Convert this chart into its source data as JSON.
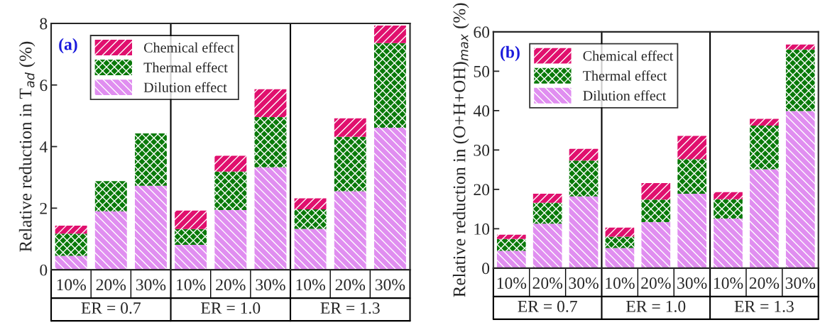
{
  "chart_data": [
    {
      "type": "bar",
      "stacked": true,
      "title": "(a)",
      "ylabel": "Relative reduction in T$_{ad}$ (%)",
      "categories": [
        "10%",
        "20%",
        "30%",
        "10%",
        "20%",
        "30%",
        "10%",
        "20%",
        "30%"
      ],
      "series": [
        {
          "name": "Dilution effect",
          "color": "#e08ef0",
          "values": [
            0.45,
            1.9,
            2.73,
            0.81,
            1.94,
            3.33,
            1.33,
            2.55,
            4.61
          ]
        },
        {
          "name": "Thermal effect",
          "color": "#0a7a0a",
          "values": [
            0.72,
            0.98,
            1.7,
            0.51,
            1.25,
            1.63,
            0.63,
            1.77,
            2.75
          ]
        },
        {
          "name": "Chemical effect",
          "color": "#e0106e",
          "values": [
            0.26,
            0,
            0,
            0.6,
            0.51,
            0.9,
            0.36,
            0.6,
            0.57
          ]
        }
      ],
      "ylim": [
        0,
        8
      ],
      "yticks": [
        0,
        2,
        4,
        6,
        8
      ],
      "legend": "top left",
      "grid": false,
      "annotations": [
        "ER = 0.7",
        "ER = 1.0",
        "ER = 1.3"
      ]
    },
    {
      "type": "bar",
      "stacked": true,
      "title": "(b)",
      "ylabel": "Relative reduction in (O+H+OH)$_{max}$ (%)",
      "categories": [
        "10%",
        "20%",
        "30%",
        "10%",
        "20%",
        "30%",
        "10%",
        "20%",
        "30%"
      ],
      "series": [
        {
          "name": "Dilution effect",
          "color": "#e08ef0",
          "values": [
            4.4,
            11.3,
            18.2,
            5.1,
            11.7,
            18.9,
            12.6,
            25.1,
            39.9
          ]
        },
        {
          "name": "Thermal effect",
          "color": "#0a7a0a",
          "values": [
            3.0,
            5.3,
            9.1,
            2.9,
            5.7,
            8.8,
            4.9,
            11.1,
            15.6
          ]
        },
        {
          "name": "Chemical effect",
          "color": "#e0106e",
          "values": [
            1.1,
            2.3,
            3.0,
            2.3,
            4.2,
            5.9,
            1.8,
            1.7,
            1.3
          ]
        }
      ],
      "ylim": [
        0,
        60
      ],
      "yticks": [
        0,
        10,
        20,
        30,
        40,
        50,
        60
      ],
      "legend": "top left",
      "grid": false,
      "annotations": [
        "ER = 0.7",
        "ER = 1.0",
        "ER = 1.3"
      ]
    }
  ]
}
